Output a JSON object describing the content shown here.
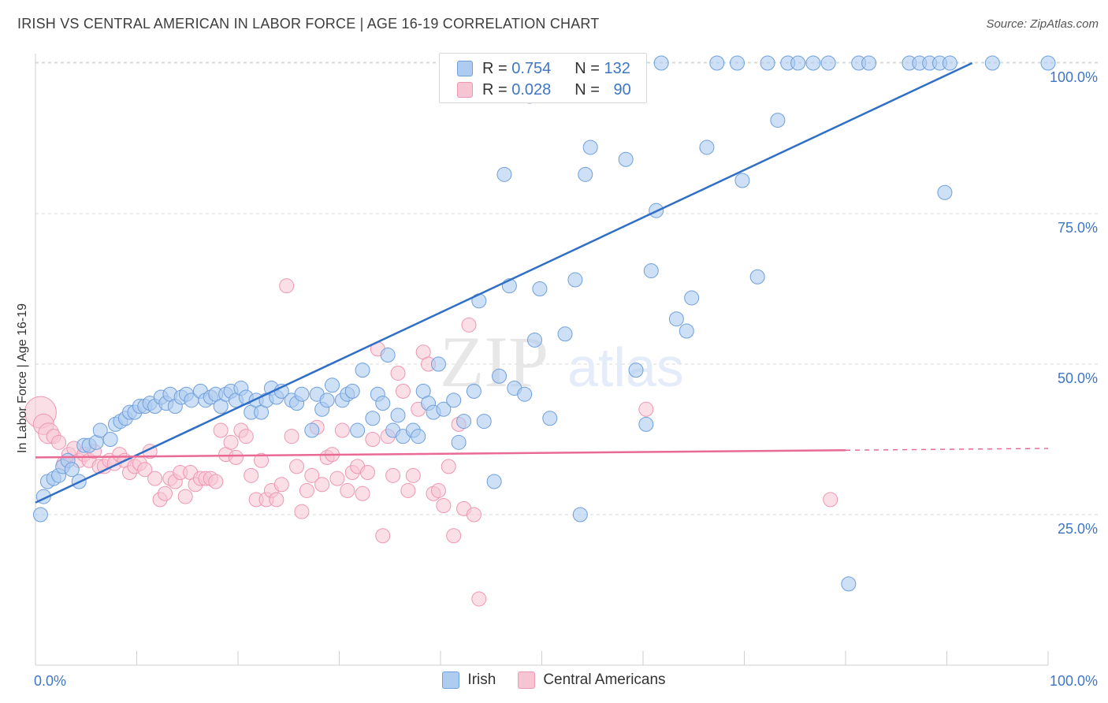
{
  "title": "IRISH VS CENTRAL AMERICAN IN LABOR FORCE | AGE 16-19 CORRELATION CHART",
  "source": "Source: ZipAtlas.com",
  "legend": {
    "irish": {
      "r_label": "R = ",
      "r": "0.754",
      "n_label": "N = ",
      "n": "132"
    },
    "central": {
      "r_label": "R = ",
      "r": "0.028",
      "n_label": "N = ",
      "n": "90"
    }
  },
  "bottom_legend": {
    "irish": "Irish",
    "central": "Central Americans"
  },
  "colors": {
    "irish_fill": "#aecbf0",
    "irish_stroke": "#6f9fdc",
    "irish_line": "#2f6fc6",
    "central_fill": "#f7c4d3",
    "central_stroke": "#ee97b2",
    "central_line": "#e96a94",
    "tick_text": "#3f76c4",
    "grid": "#d9d9d9"
  },
  "watermark": {
    "zip": "ZIP",
    "atlas": "atlas"
  },
  "chart_data": {
    "type": "scatter",
    "title": "IRISH VS CENTRAL AMERICAN IN LABOR FORCE | AGE 16-19 CORRELATION CHART",
    "xlabel": "",
    "ylabel": "In Labor Force | Age 16-19",
    "xlim": [
      0,
      100
    ],
    "ylim": [
      0,
      105
    ],
    "x_tick_labels": [
      "0.0%",
      "100.0%"
    ],
    "y_ticks": [
      25,
      50,
      75,
      100
    ],
    "y_tick_labels": [
      "25.0%",
      "50.0%",
      "75.0%",
      "100.0%"
    ],
    "grid": "horizontal dashed",
    "series": [
      {
        "name": "Irish",
        "R": 0.754,
        "N": 132,
        "trend": {
          "x": [
            0,
            92.5
          ],
          "y": [
            27,
            100
          ]
        },
        "points": [
          [
            0.5,
            25
          ],
          [
            0.8,
            28
          ],
          [
            1.2,
            30.5
          ],
          [
            1.8,
            31
          ],
          [
            2.3,
            31.5
          ],
          [
            2.7,
            33
          ],
          [
            3.2,
            34
          ],
          [
            3.6,
            32.5
          ],
          [
            4.3,
            30.5
          ],
          [
            4.8,
            36.5
          ],
          [
            5.3,
            36.5
          ],
          [
            6,
            37
          ],
          [
            6.4,
            39
          ],
          [
            7.4,
            37.5
          ],
          [
            7.9,
            40
          ],
          [
            8.4,
            40.5
          ],
          [
            8.9,
            41
          ],
          [
            9.3,
            42
          ],
          [
            9.8,
            42
          ],
          [
            10.3,
            43
          ],
          [
            10.8,
            43
          ],
          [
            11.3,
            43.5
          ],
          [
            11.8,
            43
          ],
          [
            12.4,
            44.5
          ],
          [
            12.9,
            43.5
          ],
          [
            13.3,
            45
          ],
          [
            13.8,
            43
          ],
          [
            14.4,
            44.5
          ],
          [
            14.9,
            45
          ],
          [
            15.4,
            44
          ],
          [
            16.3,
            45.5
          ],
          [
            16.8,
            44
          ],
          [
            17.3,
            44.5
          ],
          [
            17.8,
            45
          ],
          [
            18.3,
            43
          ],
          [
            18.8,
            45
          ],
          [
            19.3,
            45.5
          ],
          [
            19.8,
            44
          ],
          [
            20.3,
            46
          ],
          [
            20.8,
            44.5
          ],
          [
            21.3,
            42
          ],
          [
            21.8,
            44
          ],
          [
            22.3,
            42
          ],
          [
            22.8,
            44
          ],
          [
            23.3,
            46
          ],
          [
            23.8,
            44.5
          ],
          [
            24.3,
            45.5
          ],
          [
            25.3,
            44
          ],
          [
            25.8,
            43.5
          ],
          [
            26.3,
            45
          ],
          [
            27.3,
            39
          ],
          [
            27.8,
            45
          ],
          [
            28.3,
            42.5
          ],
          [
            28.8,
            44
          ],
          [
            29.3,
            46.5
          ],
          [
            30.3,
            44
          ],
          [
            30.8,
            45
          ],
          [
            31.3,
            45.5
          ],
          [
            31.8,
            39
          ],
          [
            32.3,
            49
          ],
          [
            33.3,
            41
          ],
          [
            33.8,
            45
          ],
          [
            34.3,
            43.5
          ],
          [
            34.8,
            51.5
          ],
          [
            35.3,
            39
          ],
          [
            35.8,
            41.5
          ],
          [
            36.3,
            38
          ],
          [
            37.3,
            39
          ],
          [
            37.8,
            38
          ],
          [
            38.3,
            45.5
          ],
          [
            38.8,
            43.5
          ],
          [
            39.3,
            42
          ],
          [
            39.8,
            50
          ],
          [
            40.3,
            42.5
          ],
          [
            41.3,
            44
          ],
          [
            41.8,
            37
          ],
          [
            42.3,
            40.5
          ],
          [
            43.3,
            45.5
          ],
          [
            43.8,
            60.5
          ],
          [
            44.3,
            40.5
          ],
          [
            45.3,
            30.5
          ],
          [
            45.8,
            48
          ],
          [
            46.3,
            81.5
          ],
          [
            46.8,
            63
          ],
          [
            47.3,
            46
          ],
          [
            48.3,
            45
          ],
          [
            48.8,
            94.5
          ],
          [
            49.3,
            54
          ],
          [
            49.8,
            62.5
          ],
          [
            50.3,
            100
          ],
          [
            50.8,
            41
          ],
          [
            51.3,
            99
          ],
          [
            52.3,
            55
          ],
          [
            52.8,
            100
          ],
          [
            53.3,
            64
          ],
          [
            53.8,
            25
          ],
          [
            54.3,
            81.5
          ],
          [
            54.8,
            86
          ],
          [
            55.3,
            100
          ],
          [
            56.3,
            100
          ],
          [
            56.8,
            100
          ],
          [
            58.3,
            84
          ],
          [
            59.3,
            49
          ],
          [
            60.3,
            40
          ],
          [
            60.8,
            65.5
          ],
          [
            61.3,
            75.5
          ],
          [
            61.8,
            100
          ],
          [
            63.3,
            57.5
          ],
          [
            64.3,
            55.5
          ],
          [
            64.8,
            61
          ],
          [
            66.3,
            86
          ],
          [
            67.3,
            100
          ],
          [
            69.3,
            100
          ],
          [
            69.8,
            80.5
          ],
          [
            71.3,
            64.5
          ],
          [
            72.3,
            100
          ],
          [
            73.3,
            90.5
          ],
          [
            74.3,
            100
          ],
          [
            75.3,
            100
          ],
          [
            76.8,
            100
          ],
          [
            78.3,
            100
          ],
          [
            80.3,
            13.5
          ],
          [
            81.3,
            100
          ],
          [
            82.3,
            100
          ],
          [
            86.3,
            100
          ],
          [
            87.3,
            100
          ],
          [
            88.3,
            100
          ],
          [
            89.3,
            100
          ],
          [
            89.8,
            78.5
          ],
          [
            90.3,
            100
          ],
          [
            94.5,
            100
          ],
          [
            100,
            100
          ]
        ]
      },
      {
        "name": "Central Americans",
        "R": 0.028,
        "N": 90,
        "trend": {
          "x": [
            0,
            80
          ],
          "y": [
            34.5,
            35.7
          ]
        },
        "trend_dashed": {
          "x": [
            80,
            100
          ],
          "y": [
            35.7,
            36
          ]
        },
        "points": [
          [
            0.5,
            42
          ],
          [
            0.8,
            40
          ],
          [
            1.3,
            38.5
          ],
          [
            1.8,
            38
          ],
          [
            2.3,
            37
          ],
          [
            2.8,
            33.5
          ],
          [
            3.3,
            35
          ],
          [
            3.8,
            36
          ],
          [
            4.3,
            34
          ],
          [
            4.8,
            35
          ],
          [
            5.3,
            34
          ],
          [
            5.8,
            35.5
          ],
          [
            6.3,
            33
          ],
          [
            6.8,
            33
          ],
          [
            7.3,
            34
          ],
          [
            7.8,
            33.5
          ],
          [
            8.3,
            35
          ],
          [
            8.8,
            34
          ],
          [
            9.3,
            32
          ],
          [
            9.8,
            33
          ],
          [
            10.3,
            33.5
          ],
          [
            10.8,
            32.5
          ],
          [
            11.3,
            35.5
          ],
          [
            11.8,
            31
          ],
          [
            12.3,
            27.5
          ],
          [
            12.8,
            28.5
          ],
          [
            13.3,
            31
          ],
          [
            13.8,
            30.5
          ],
          [
            14.3,
            32
          ],
          [
            14.8,
            28
          ],
          [
            15.3,
            32
          ],
          [
            15.8,
            30
          ],
          [
            16.3,
            31
          ],
          [
            16.8,
            31
          ],
          [
            17.3,
            31
          ],
          [
            17.8,
            30.5
          ],
          [
            18.3,
            39
          ],
          [
            18.8,
            35
          ],
          [
            19.3,
            37
          ],
          [
            19.8,
            34.5
          ],
          [
            20.3,
            39
          ],
          [
            20.8,
            38
          ],
          [
            21.3,
            31.5
          ],
          [
            21.8,
            27.5
          ],
          [
            22.3,
            34
          ],
          [
            22.8,
            27.5
          ],
          [
            23.3,
            29
          ],
          [
            23.8,
            27.5
          ],
          [
            24.3,
            30
          ],
          [
            24.8,
            63
          ],
          [
            25.3,
            38
          ],
          [
            25.8,
            33
          ],
          [
            26.3,
            25.5
          ],
          [
            26.8,
            29
          ],
          [
            27.3,
            31.5
          ],
          [
            27.8,
            39.5
          ],
          [
            28.3,
            30
          ],
          [
            28.8,
            34.5
          ],
          [
            29.3,
            35
          ],
          [
            29.8,
            31
          ],
          [
            30.3,
            39
          ],
          [
            30.8,
            29
          ],
          [
            31.3,
            32
          ],
          [
            31.8,
            33
          ],
          [
            32.3,
            28.5
          ],
          [
            32.8,
            32
          ],
          [
            33.3,
            37.5
          ],
          [
            33.8,
            52.5
          ],
          [
            34.3,
            21.5
          ],
          [
            34.8,
            38
          ],
          [
            35.3,
            31.5
          ],
          [
            35.8,
            48.5
          ],
          [
            36.3,
            45.5
          ],
          [
            36.8,
            29
          ],
          [
            37.3,
            31.5
          ],
          [
            37.8,
            42.5
          ],
          [
            38.3,
            52
          ],
          [
            38.8,
            50
          ],
          [
            39.3,
            28.5
          ],
          [
            39.8,
            29
          ],
          [
            40.3,
            26.5
          ],
          [
            40.8,
            33
          ],
          [
            41.3,
            21.5
          ],
          [
            41.8,
            40
          ],
          [
            42.3,
            26
          ],
          [
            42.8,
            56.5
          ],
          [
            43.3,
            25
          ],
          [
            43.8,
            11
          ],
          [
            60.3,
            42.5
          ],
          [
            78.5,
            27.5
          ]
        ]
      }
    ]
  }
}
